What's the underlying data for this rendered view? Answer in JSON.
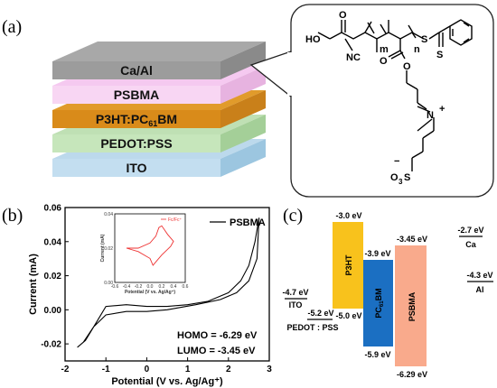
{
  "panel_a": {
    "label": "(a)",
    "layers": [
      {
        "name": "Ca/Al",
        "top": "#a8a8a8",
        "side": "#8a8a8a",
        "front": "#9c9c9c"
      },
      {
        "name": "PSBMA",
        "top": "#f5c9f0",
        "side": "#e7b3e0",
        "front": "#f8d6f3"
      },
      {
        "name": "P3HT:PC",
        "sub": "61",
        "suffix": "BM",
        "top": "#e19b2b",
        "side": "#c9801a",
        "front": "#d98b1a"
      },
      {
        "name": "PEDOT:PSS",
        "top": "#bfe0b4",
        "side": "#a4cf98",
        "front": "#c6e6bb"
      },
      {
        "name": "ITO",
        "top": "#bcd9ec",
        "side": "#9cc6e0",
        "front": "#c3def0"
      }
    ],
    "structure": {
      "labels": [
        "HO",
        "O",
        "NC",
        "n",
        "m",
        "S",
        "S",
        "O",
        "O",
        "N",
        "+",
        "−",
        "O",
        "3",
        "S"
      ]
    }
  },
  "panel_b": {
    "label": "(b)",
    "legend": "PSBMA",
    "homo": "HOMO = -6.29 eV",
    "lumo": "LUMO = -3.45 eV",
    "inset_legend": "Fc/Fc⁺",
    "inset_xlabel": "Potential (V vs. Ag/Ag⁺)",
    "inset_ylabel": "Current (mA)"
  },
  "panel_c": {
    "label": "(c)",
    "levels": {
      "ito": "-4.7 eV",
      "ito_name": "ITO",
      "pedot": "-5.2 eV",
      "pedot_name": "PEDOT : PSS",
      "p3ht_top": "-3.0 eV",
      "p3ht_bottom": "-5.0 eV",
      "p3ht_name": "P3HT",
      "pcbm_top": "-3.9 eV",
      "pcbm_bottom": "-5.9 eV",
      "pcbm_name": "PC",
      "pcbm_sub": "61",
      "pcbm_suffix": "BM",
      "psbma_top": "-3.45 eV",
      "psbma_bottom": "-6.29 eV",
      "psbma_name": "PSBMA",
      "ca": "-2.7 eV",
      "ca_name": "Ca",
      "al": "-4.3 eV",
      "al_name": "Al"
    },
    "colors": {
      "p3ht": "#f8c21c",
      "pcbm": "#1b6fc2",
      "psbma": "#f9aa8c"
    }
  },
  "chart_data": {
    "type": "line",
    "xlabel": "Potential (V vs. Ag/Ag⁺)",
    "ylabel": "Current (mA)",
    "xlim": [
      -2,
      3
    ],
    "ylim": [
      -0.03,
      0.06
    ],
    "xticks": [
      "-2",
      "-1",
      "0",
      "1",
      "2",
      "3"
    ],
    "yticks": [
      "-0.02",
      "0.00",
      "0.02",
      "0.04",
      "0.06"
    ],
    "series": [
      {
        "name": "PSBMA",
        "x": [
          -1.7,
          -1.5,
          -1.2,
          -1.0,
          -0.5,
          0.0,
          0.5,
          1.0,
          1.5,
          2.0,
          2.3,
          2.5,
          2.65,
          2.75,
          2.7,
          2.5,
          2.2,
          1.8,
          1.2,
          0.5,
          0.0,
          -0.5,
          -1.0,
          -1.3,
          -1.55,
          -1.7
        ],
        "y": [
          -0.022,
          -0.018,
          -0.006,
          0.002,
          0.003,
          0.002,
          0.002,
          0.003,
          0.005,
          0.01,
          0.017,
          0.026,
          0.04,
          0.054,
          0.03,
          0.017,
          0.01,
          0.006,
          0.003,
          0.0,
          -0.001,
          -0.001,
          -0.003,
          -0.01,
          -0.019,
          -0.022
        ]
      }
    ],
    "inset": {
      "xlim": [
        -0.6,
        0.6
      ],
      "ylim": [
        0.0,
        0.04
      ],
      "xticks": [
        "-0.6",
        "-0.4",
        "-0.2",
        "0.0",
        "0.2",
        "0.4",
        "0.6"
      ],
      "yticks": [
        "0.00",
        "0.02",
        "0.04"
      ],
      "series": [
        {
          "name": "Fc/Fc⁺",
          "x": [
            -0.4,
            -0.2,
            0.0,
            0.1,
            0.15,
            0.2,
            0.3,
            0.4,
            0.35,
            0.2,
            0.1,
            0.05,
            0.0,
            -0.2,
            -0.4
          ],
          "y": [
            0.02,
            0.02,
            0.023,
            0.027,
            0.032,
            0.033,
            0.028,
            0.024,
            0.021,
            0.016,
            0.012,
            0.01,
            0.014,
            0.018,
            0.02
          ]
        }
      ]
    }
  }
}
